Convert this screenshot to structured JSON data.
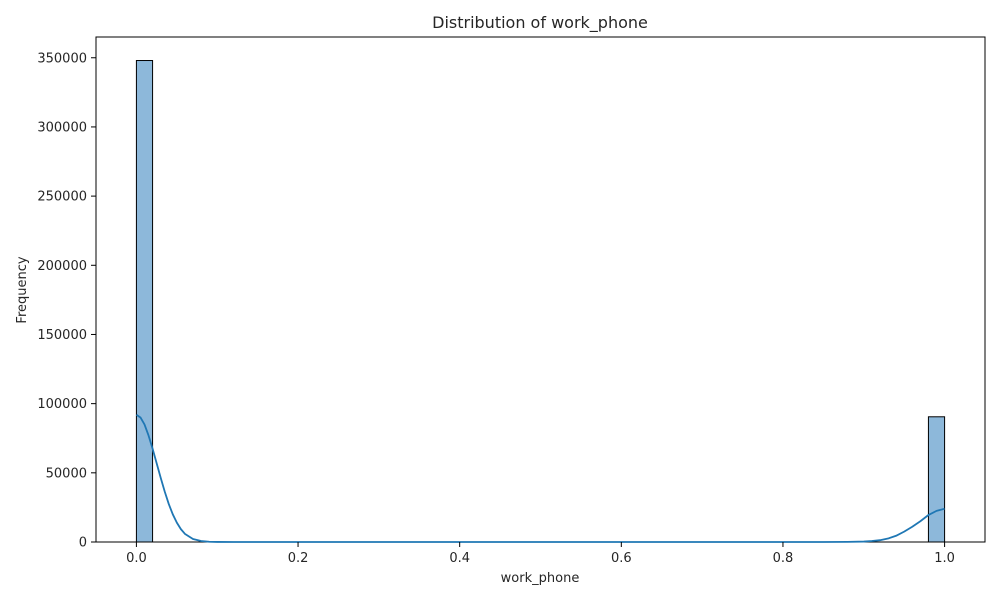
{
  "chart_data": {
    "type": "bar",
    "subtype": "histogram-with-kde",
    "title": "Distribution of work_phone",
    "xlabel": "work_phone",
    "ylabel": "Frequency",
    "xlim": [
      -0.05,
      1.05
    ],
    "ylim": [
      0,
      365000
    ],
    "xticks": [
      0.0,
      0.2,
      0.4,
      0.6,
      0.8,
      1.0
    ],
    "xtick_labels": [
      "0.0",
      "0.2",
      "0.4",
      "0.6",
      "0.8",
      "1.0"
    ],
    "yticks": [
      0,
      50000,
      100000,
      150000,
      200000,
      250000,
      300000,
      350000
    ],
    "ytick_labels": [
      "0",
      "50000",
      "100000",
      "150000",
      "200000",
      "250000",
      "300000",
      "350000"
    ],
    "grid": false,
    "bars": [
      {
        "x_start": 0.0,
        "x_end": 0.02,
        "count": 348000
      },
      {
        "x_start": 0.98,
        "x_end": 1.0,
        "count": 90500
      }
    ],
    "kde": {
      "x": [
        0.0,
        0.005,
        0.01,
        0.015,
        0.02,
        0.025,
        0.03,
        0.035,
        0.04,
        0.045,
        0.05,
        0.055,
        0.06,
        0.07,
        0.08,
        0.09,
        0.1,
        0.12,
        0.15,
        0.2,
        0.4,
        0.6,
        0.8,
        0.85,
        0.88,
        0.9,
        0.91,
        0.92,
        0.93,
        0.94,
        0.95,
        0.96,
        0.97,
        0.98,
        0.99,
        1.0
      ],
      "y": [
        92000,
        90000,
        85000,
        77000,
        67500,
        57000,
        46500,
        36500,
        27500,
        20000,
        14000,
        9300,
        5900,
        2200,
        700,
        200,
        50,
        0,
        0,
        0,
        0,
        0,
        0,
        0,
        100,
        300,
        700,
        1300,
        2500,
        4500,
        7500,
        11000,
        15000,
        19500,
        22500,
        24000
      ]
    },
    "colors": {
      "bar_fill": "#8db8da",
      "bar_edge": "#000000",
      "kde_line": "#1f77b4"
    }
  }
}
